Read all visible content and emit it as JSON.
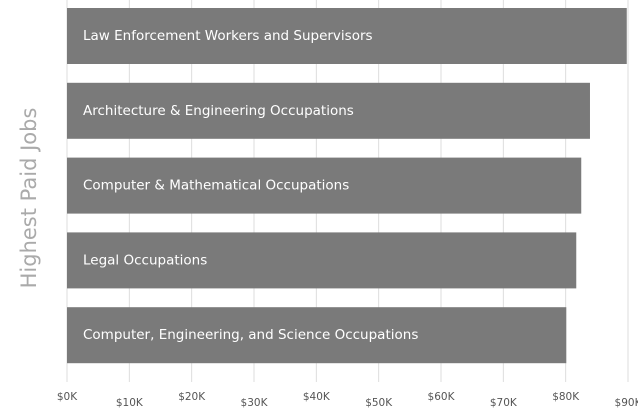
{
  "chart_data": {
    "type": "barh",
    "ylabel": "Highest Paid Jobs",
    "categories": [
      "Law Enforcement Workers and Supervisors",
      "Architecture & Engineering Occupations",
      "Computer & Mathematical Occupations",
      "Legal Occupations",
      "Computer, Engineering, and Science Occupations"
    ],
    "values": [
      89800,
      83900,
      82500,
      81700,
      80100
    ],
    "color": "#7a7a7a",
    "xlim": [
      0,
      90000
    ],
    "xticks": [
      {
        "value": 0,
        "label": "$0K"
      },
      {
        "value": 10000,
        "label": "$10K"
      },
      {
        "value": 20000,
        "label": "$20K"
      },
      {
        "value": 30000,
        "label": "$30K"
      },
      {
        "value": 40000,
        "label": "$40K"
      },
      {
        "value": 50000,
        "label": "$50K"
      },
      {
        "value": 60000,
        "label": "$60K"
      },
      {
        "value": 70000,
        "label": "$70K"
      },
      {
        "value": 80000,
        "label": "$80K"
      },
      {
        "value": 90000,
        "label": "$90K"
      }
    ],
    "grid": true
  }
}
